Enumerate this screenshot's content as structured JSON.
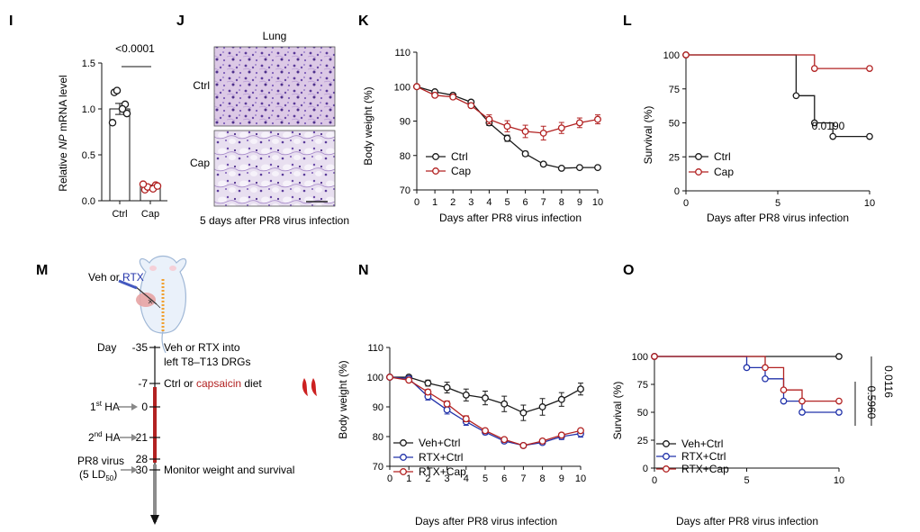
{
  "panel_labels": {
    "I": "I",
    "J": "J",
    "K": "K",
    "L": "L",
    "M": "M",
    "N": "N",
    "O": "O"
  },
  "colors": {
    "black": "#1a1a1a",
    "red": "#b22222",
    "blue": "#2233aa",
    "gray": "#999999",
    "he_bg": "#d9c8e4"
  },
  "chart_data": [
    {
      "id": "I",
      "type": "bar",
      "ylabel": "Relative NP mRNA level",
      "ylabel_parts": [
        "Relative ",
        "NP",
        " mRNA level"
      ],
      "categories": [
        "Ctrl",
        "Cap"
      ],
      "values": [
        1.0,
        0.15
      ],
      "errors": [
        0.06,
        0.02
      ],
      "points": [
        [
          1.18,
          1.05,
          1.2,
          1.0,
          0.85,
          0.95
        ],
        [
          0.12,
          0.17,
          0.15,
          0.13,
          0.18,
          0.16
        ]
      ],
      "series_colors": [
        "#1a1a1a",
        "#b22222"
      ],
      "ylim": [
        0,
        1.5
      ],
      "yticks": [
        0.0,
        0.5,
        1.0,
        1.5
      ],
      "ytick_labels": [
        "0.0",
        "0.5",
        "1.0",
        "1.5"
      ],
      "annotation": "<0.0001"
    },
    {
      "id": "J",
      "type": "image",
      "title": "Lung",
      "rows": [
        "Ctrl",
        "Cap"
      ],
      "caption": "5 days after PR8 virus infection"
    },
    {
      "id": "K",
      "type": "line",
      "xlabel": "Days after PR8 virus infection",
      "ylabel": "Body weight (%)",
      "x": [
        0,
        1,
        2,
        3,
        4,
        5,
        6,
        7,
        8,
        9,
        10
      ],
      "xlim": [
        0,
        10
      ],
      "ylim": [
        70,
        110
      ],
      "yticks": [
        70,
        80,
        90,
        100,
        110
      ],
      "series": [
        {
          "name": "Ctrl",
          "color": "#1a1a1a",
          "values": [
            100,
            98.5,
            97.5,
            95.5,
            89.5,
            85,
            80.5,
            77.5,
            76.3,
            76.5,
            76.5
          ],
          "errors": [
            0,
            0.3,
            0.3,
            0.4,
            0.8,
            0.9,
            0.7,
            0.4,
            0.3,
            0.3,
            0.3
          ]
        },
        {
          "name": "Cap",
          "color": "#b22222",
          "values": [
            100,
            97.5,
            97,
            94.5,
            90.5,
            88.5,
            87,
            86.5,
            88,
            89.5,
            90.5
          ],
          "errors": [
            0,
            0.3,
            0.5,
            0.5,
            1.3,
            1.6,
            1.8,
            2.0,
            1.6,
            1.4,
            1.3
          ]
        }
      ]
    },
    {
      "id": "L",
      "type": "survival",
      "xlabel": "Days after PR8 virus infection",
      "ylabel": "Survival (%)",
      "xlim": [
        0,
        10
      ],
      "ylim": [
        0,
        100
      ],
      "xticks": [
        0,
        5,
        10
      ],
      "yticks": [
        0,
        25,
        50,
        75,
        100
      ],
      "annotation": "0.0190",
      "series": [
        {
          "name": "Ctrl",
          "color": "#1a1a1a",
          "steps": [
            [
              0,
              100
            ],
            [
              6,
              70
            ],
            [
              7,
              50
            ],
            [
              8,
              40
            ],
            [
              10,
              40
            ]
          ]
        },
        {
          "name": "Cap",
          "color": "#b22222",
          "steps": [
            [
              0,
              100
            ],
            [
              7,
              90
            ],
            [
              10,
              90
            ]
          ]
        }
      ]
    },
    {
      "id": "N",
      "type": "line",
      "xlabel": "Days after PR8 virus infection",
      "ylabel": "Body weight (%)",
      "x": [
        0,
        1,
        2,
        3,
        4,
        5,
        6,
        7,
        8,
        9,
        10
      ],
      "xlim": [
        0,
        10
      ],
      "ylim": [
        70,
        110
      ],
      "yticks": [
        70,
        80,
        90,
        100,
        110
      ],
      "series": [
        {
          "name": "Veh+Ctrl",
          "color": "#1a1a1a",
          "values": [
            100,
            100,
            98,
            96.5,
            94,
            93,
            91,
            88,
            90,
            92.5,
            96
          ],
          "errors": [
            0,
            0.7,
            1.0,
            1.8,
            2.0,
            2.3,
            2.6,
            2.6,
            2.8,
            2.3,
            2.0
          ]
        },
        {
          "name": "RTX+Ctrl",
          "color": "#2233aa",
          "values": [
            100,
            99.5,
            93.5,
            89,
            85,
            81.5,
            78.5,
            77,
            78,
            80,
            81
          ],
          "errors": [
            0,
            0.8,
            1.2,
            1.4,
            1.2,
            0.8,
            0.7,
            0.7,
            0.7,
            1.0,
            1.2
          ]
        },
        {
          "name": "RTX+Cap",
          "color": "#b22222",
          "values": [
            100,
            99,
            95,
            91,
            86,
            82,
            79,
            77,
            78.5,
            80.5,
            82
          ],
          "errors": [
            0,
            0.5,
            0.9,
            1.0,
            1.0,
            0.6,
            0.6,
            0.5,
            0.5,
            0.5,
            0.6
          ]
        }
      ]
    },
    {
      "id": "O",
      "type": "survival",
      "xlabel": "Days after PR8 virus infection",
      "ylabel": "Survival (%)",
      "xlim": [
        0,
        10
      ],
      "ylim": [
        0,
        100
      ],
      "xticks": [
        0,
        5,
        10
      ],
      "yticks": [
        0,
        25,
        50,
        75,
        100
      ],
      "annotations": [
        "0.0116",
        "0.5960"
      ],
      "series": [
        {
          "name": "Veh+Ctrl",
          "color": "#1a1a1a",
          "steps": [
            [
              0,
              100
            ],
            [
              10,
              100
            ]
          ]
        },
        {
          "name": "RTX+Ctrl",
          "color": "#2233aa",
          "steps": [
            [
              0,
              100
            ],
            [
              5,
              90
            ],
            [
              6,
              80
            ],
            [
              7,
              60
            ],
            [
              8,
              50
            ],
            [
              10,
              50
            ]
          ]
        },
        {
          "name": "RTX+Cap",
          "color": "#b22222",
          "steps": [
            [
              0,
              100
            ],
            [
              6,
              90
            ],
            [
              7,
              70
            ],
            [
              8,
              60
            ],
            [
              10,
              60
            ]
          ]
        }
      ]
    }
  ],
  "schematic": {
    "inject_label_pre": "Veh or ",
    "inject_label_rtx": "RTX",
    "day_label": "Day",
    "events": [
      {
        "day": "-35",
        "text": "Veh or RTX into"
      },
      {
        "day": "",
        "text": "left T8–T13 DRGs"
      },
      {
        "day": "-7",
        "text_pre": "Ctrl or ",
        "text_red": "capsaicin",
        "text_post": " diet"
      },
      {
        "day": "0",
        "left_main": "1",
        "left_sup": "st",
        "left_post": " HA"
      },
      {
        "day": "21",
        "left_main": "2",
        "left_sup": "nd",
        "left_post": " HA"
      },
      {
        "day": "28",
        "text": ""
      },
      {
        "day": "30",
        "left_main": "PR8 virus",
        "left_sub_pre": "(5 LD",
        "left_sub": "50",
        "left_sub_post": ")",
        "text": "Monitor weight and survival"
      }
    ]
  }
}
